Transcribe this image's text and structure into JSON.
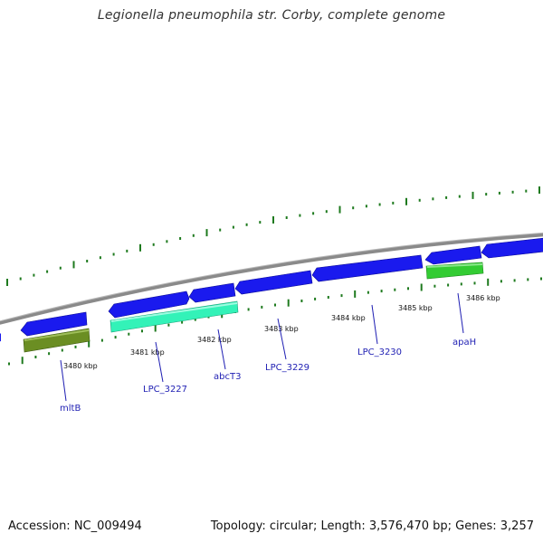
{
  "title": "Legionella pneumophila str. Corby, complete genome",
  "accession": "Accession: NC_009494",
  "summary": "Topology: circular; Length: 3,576,470 bp; Genes: 3,257",
  "colors": {
    "backbone": "#8a8a8a",
    "tick": "#1e7a1e",
    "gene_label": "#1f1fb3",
    "forward_gene": "#1a1aee",
    "rna_mint": "#33f2b8",
    "rna_olive": "#6b8e23",
    "rna_green": "#33cc33"
  },
  "kbp_ticks": [
    "3480 kbp",
    "3481 kbp",
    "3482 kbp",
    "3483 kbp",
    "3484 kbp",
    "3485 kbp",
    "3486 kbp"
  ],
  "gene_labels": [
    "mltB",
    "LPC_3227",
    "abcT3",
    "LPC_3229",
    "LPC_3230",
    "apaH"
  ]
}
